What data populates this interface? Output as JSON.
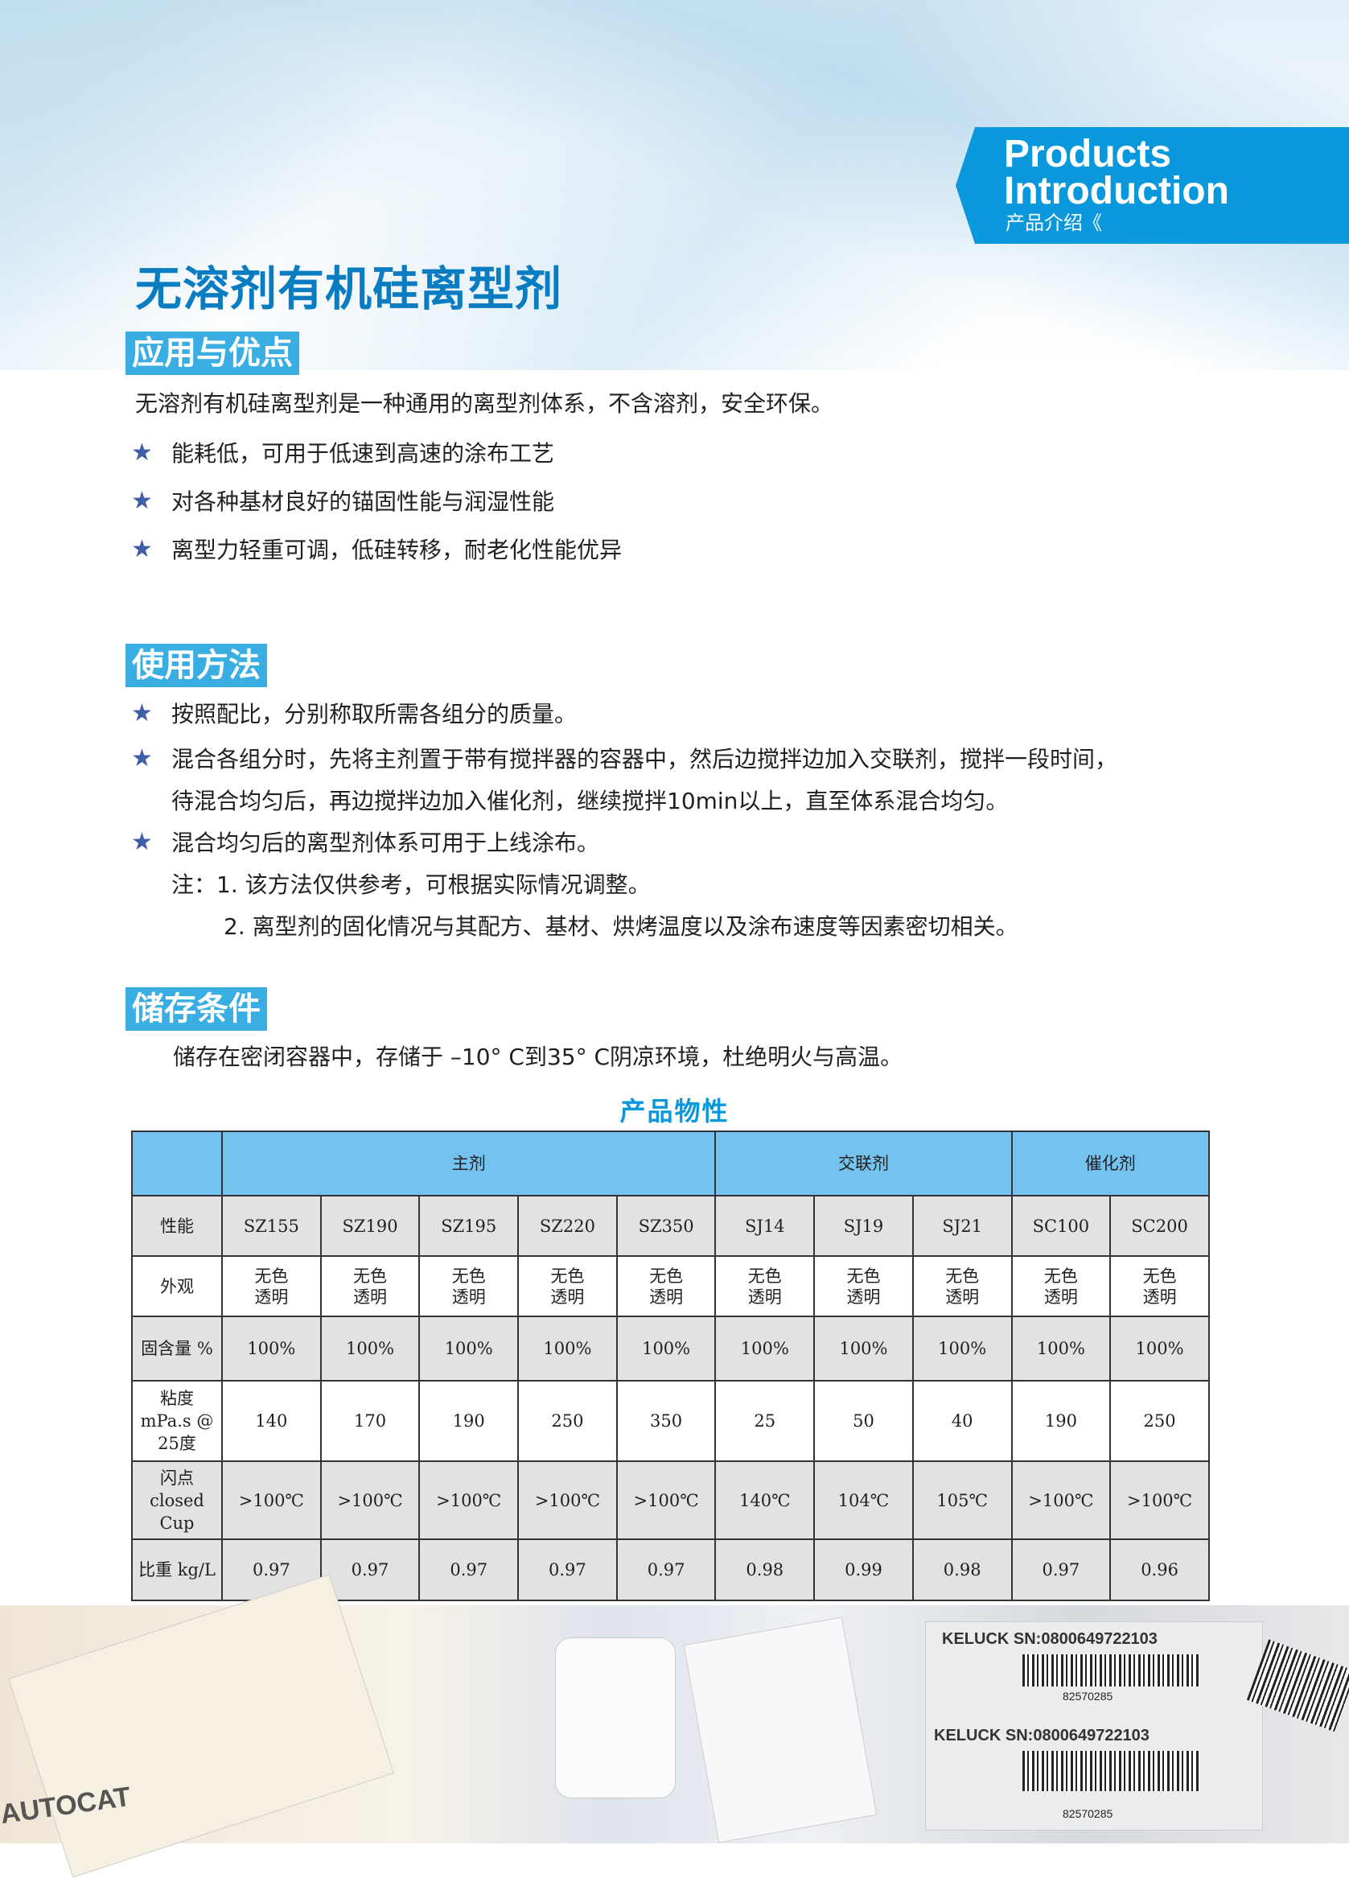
{
  "banner": {
    "line1": "Products",
    "line2": "Introduction",
    "cn": "产品介绍《"
  },
  "title": "无溶剂有机硅离型剂",
  "sections": {
    "advantages": {
      "heading": "应用与优点",
      "intro": "无溶剂有机硅离型剂是一种通用的离型剂体系，不含溶剂，安全环保。",
      "items": [
        "能耗低，可用于低速到高速的涂布工艺",
        "对各种基材良好的锚固性能与润湿性能",
        "离型力轻重可调，低硅转移，耐老化性能优异"
      ]
    },
    "usage": {
      "heading": "使用方法",
      "items": [
        "按照配比，分别称取所需各组分的质量。",
        "混合各组分时，先将主剂置于带有搅拌器的容器中，然后边搅拌边加入交联剂，搅拌一段时间，",
        "待混合均匀后，再边搅拌边加入催化剂，继续搅拌10min以上，直至体系混合均匀。",
        "混合均匀后的离型剂体系可用于上线涂布。"
      ],
      "note1": "注：1. 该方法仅供参考，可根据实际情况调整。",
      "note2": "2. 离型剂的固化情况与其配方、基材、烘烤温度以及涂布速度等因素密切相关。"
    },
    "storage": {
      "heading": "储存条件",
      "text": "储存在密闭容器中，存储于 –10° C到35° C阴凉环境，杜绝明火与高温。"
    }
  },
  "table": {
    "title": "产品物性",
    "groups": [
      "主剂",
      "交联剂",
      "催化剂"
    ],
    "rows": [
      {
        "label": "性能",
        "cells": [
          "SZ155",
          "SZ190",
          "SZ195",
          "SZ220",
          "SZ350",
          "SJ14",
          "SJ19",
          "SJ21",
          "SC100",
          "SC200"
        ]
      },
      {
        "label": "外观",
        "cells": [
          "无色透明",
          "无色透明",
          "无色透明",
          "无色透明",
          "无色透明",
          "无色透明",
          "无色透明",
          "无色透明",
          "无色透明",
          "无色透明"
        ]
      },
      {
        "label": "固含量 %",
        "cells": [
          "100%",
          "100%",
          "100%",
          "100%",
          "100%",
          "100%",
          "100%",
          "100%",
          "100%",
          "100%"
        ]
      },
      {
        "label": "粘度 mPa.s @ 25度",
        "cells": [
          "140",
          "170",
          "190",
          "250",
          "350",
          "25",
          "50",
          "40",
          "190",
          "250"
        ]
      },
      {
        "label": "闪点 closed Cup",
        "cells": [
          ">100℃",
          ">100℃",
          ">100℃",
          ">100℃",
          ">100℃",
          "140℃",
          "104℃",
          "105℃",
          ">100℃",
          ">100℃"
        ]
      },
      {
        "label": "比重 kg/L",
        "cells": [
          "0.97",
          "0.97",
          "0.97",
          "0.97",
          "0.97",
          "0.98",
          "0.99",
          "0.98",
          "0.97",
          "0.96"
        ]
      }
    ]
  },
  "photo": {
    "label1": "KELUCK SN:0800649722103",
    "label2": "82570285",
    "label3": "AUTOCAT"
  },
  "colors": {
    "accent": "#0a98dc",
    "title": "#0a7cc2",
    "badge": "#3aaee3",
    "table_header": "#74c2ee",
    "table_gray": "#e2e2e2",
    "star": "#3f5ea8"
  }
}
